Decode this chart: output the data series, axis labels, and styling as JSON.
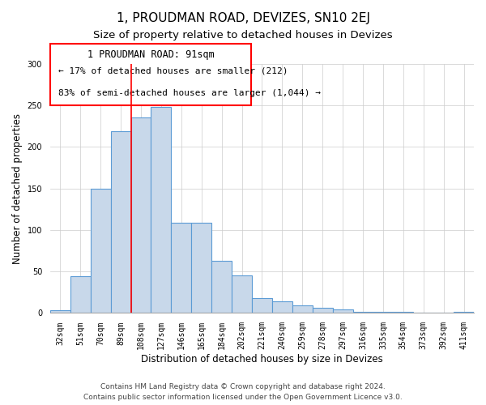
{
  "title": "1, PROUDMAN ROAD, DEVIZES, SN10 2EJ",
  "subtitle": "Size of property relative to detached houses in Devizes",
  "xlabel": "Distribution of detached houses by size in Devizes",
  "ylabel": "Number of detached properties",
  "bar_labels": [
    "32sqm",
    "51sqm",
    "70sqm",
    "89sqm",
    "108sqm",
    "127sqm",
    "146sqm",
    "165sqm",
    "184sqm",
    "202sqm",
    "221sqm",
    "240sqm",
    "259sqm",
    "278sqm",
    "297sqm",
    "316sqm",
    "335sqm",
    "354sqm",
    "373sqm",
    "392sqm",
    "411sqm"
  ],
  "bar_values": [
    3,
    44,
    150,
    219,
    236,
    248,
    109,
    109,
    63,
    45,
    18,
    14,
    9,
    6,
    4,
    1,
    1,
    1,
    0,
    0,
    1
  ],
  "bar_color": "#c8d8ea",
  "bar_edge_color": "#5b9bd5",
  "ylim": [
    0,
    300
  ],
  "yticks": [
    0,
    50,
    100,
    150,
    200,
    250,
    300
  ],
  "annotation_title": "1 PROUDMAN ROAD: 91sqm",
  "annotation_line1": "← 17% of detached houses are smaller (212)",
  "annotation_line2": "83% of semi-detached houses are larger (1,044) →",
  "marker_bar_index": 3,
  "footer_line1": "Contains HM Land Registry data © Crown copyright and database right 2024.",
  "footer_line2": "Contains public sector information licensed under the Open Government Licence v3.0.",
  "title_fontsize": 11,
  "subtitle_fontsize": 9.5,
  "axis_label_fontsize": 8.5,
  "tick_fontsize": 7,
  "footer_fontsize": 6.5,
  "annotation_title_fontsize": 8.5,
  "annotation_text_fontsize": 8
}
